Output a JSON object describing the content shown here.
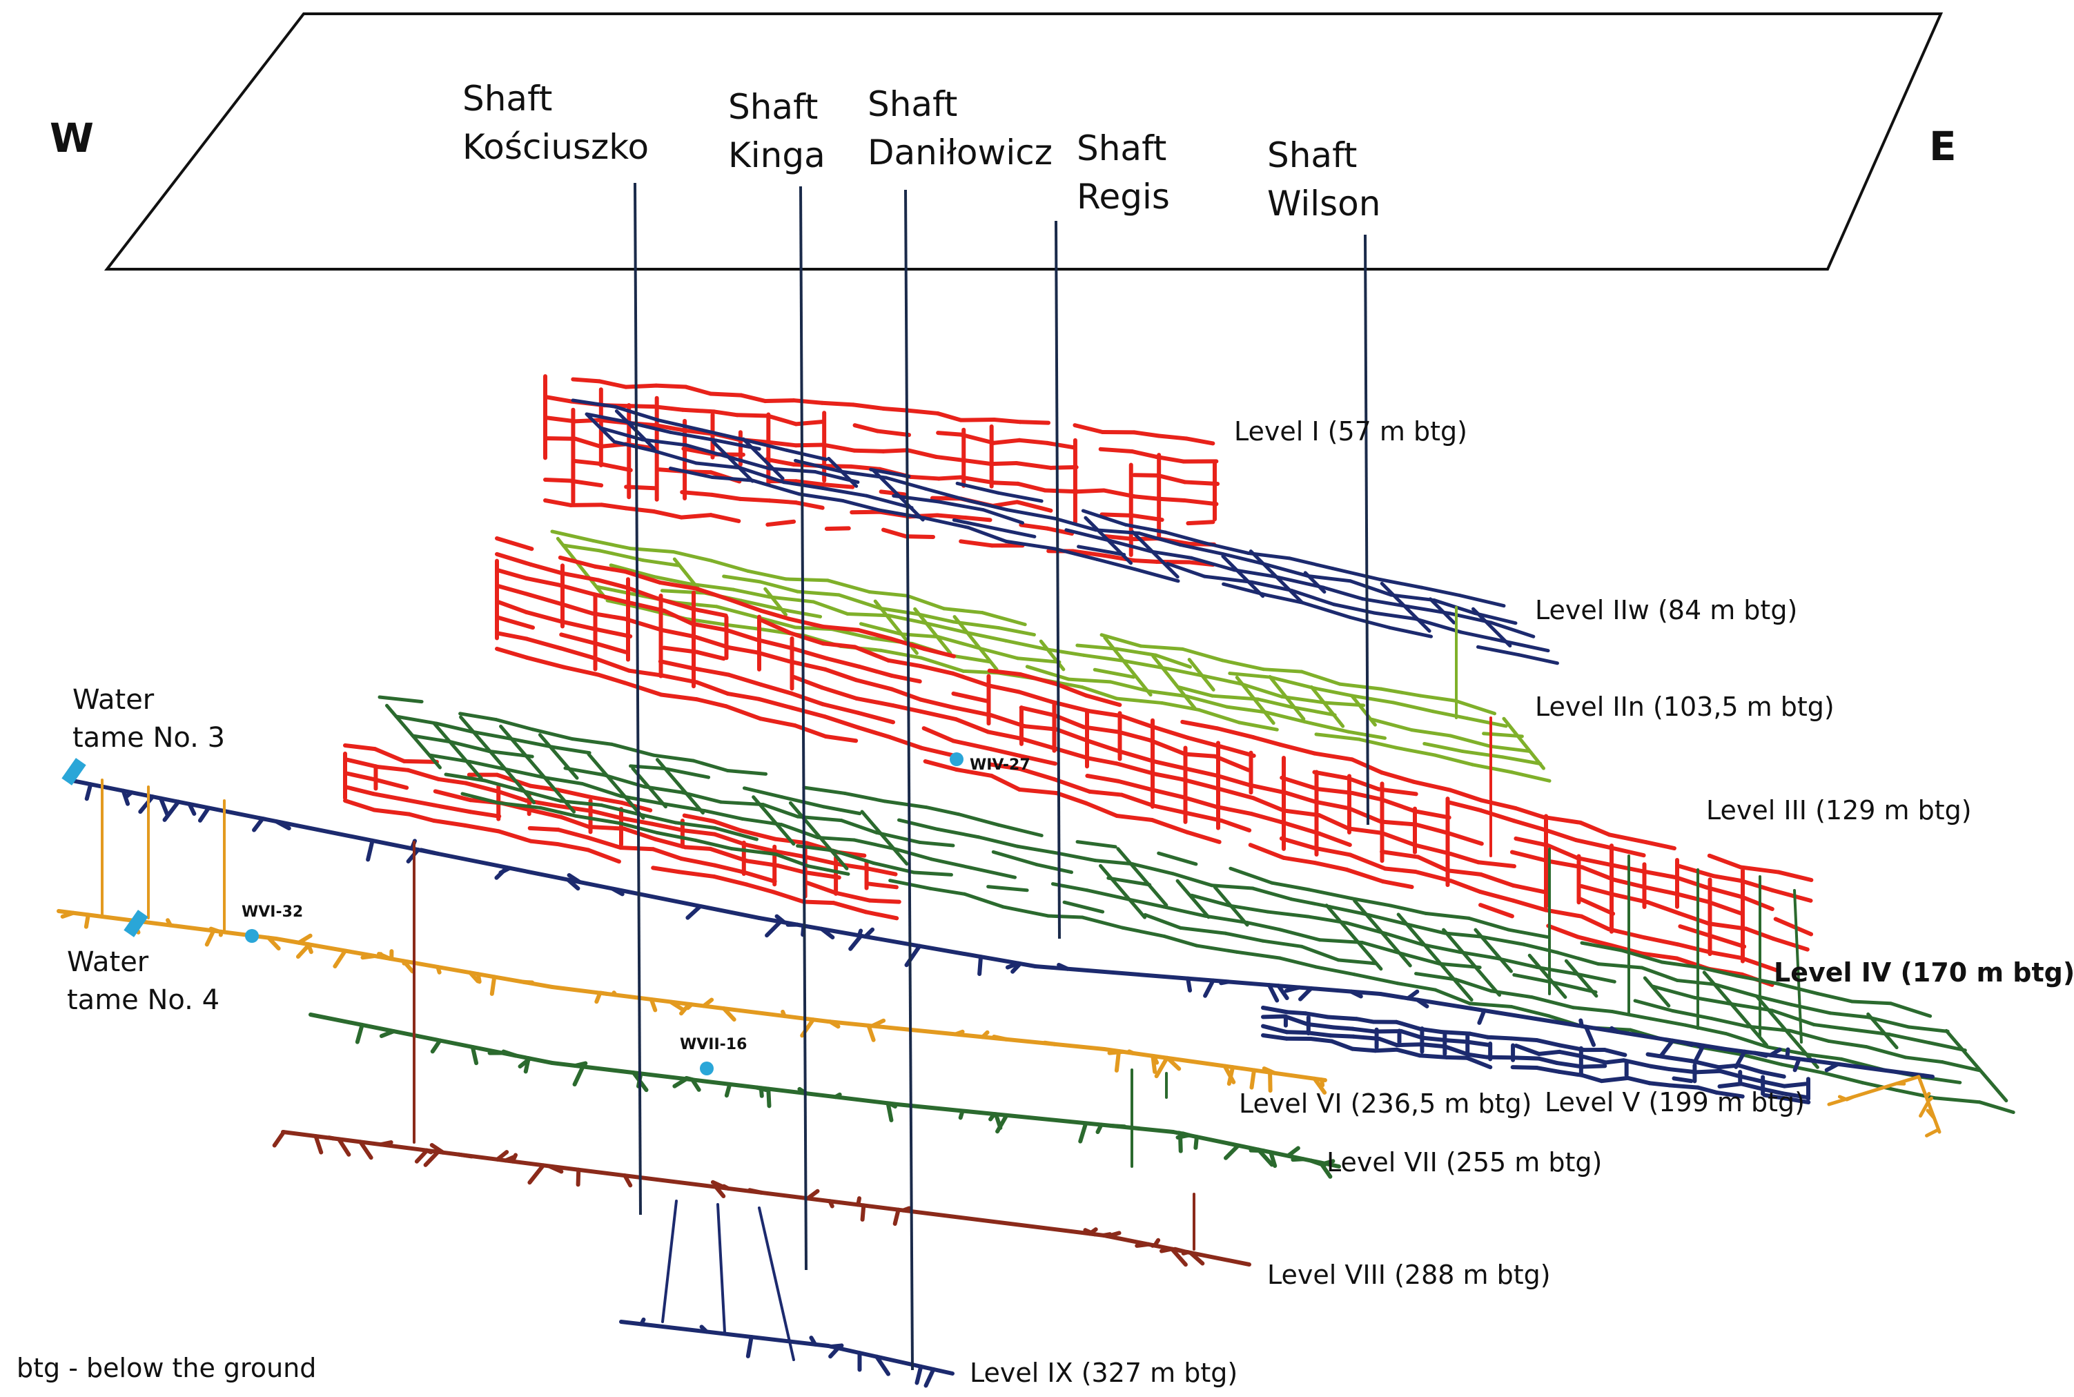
{
  "directions": {
    "west": "W",
    "east": "E"
  },
  "shafts": [
    {
      "line1": "Shaft",
      "line2": "Kościuszko"
    },
    {
      "line1": "Shaft",
      "line2": "Kinga"
    },
    {
      "line1": "Shaft",
      "line2": "Daniłowicz"
    },
    {
      "line1": "Shaft",
      "line2": "Regis"
    },
    {
      "line1": "Shaft",
      "line2": "Wilson"
    }
  ],
  "levels": [
    {
      "label": "Level I (57 m btg)",
      "color": "#e8221a"
    },
    {
      "label": "Level IIw (84 m btg)",
      "color": "#1c2a6e"
    },
    {
      "label": "Level IIn (103,5 m btg)",
      "color": "#7fb02a"
    },
    {
      "label": "Level III (129 m btg)",
      "color": "#e8221a"
    },
    {
      "label": "Level IV (170 m btg)",
      "color": "#2b6a2e",
      "highlight": "#e8221a"
    },
    {
      "label": "Level V (199 m btg)",
      "color": "#1c2a6e"
    },
    {
      "label": "Level VI (236,5 m btg)",
      "color": "#e39a1f"
    },
    {
      "label": "Level VII (255 m btg)",
      "color": "#2b6a2e"
    },
    {
      "label": "Level VIII (288 m btg)",
      "color": "#8b2a1a"
    },
    {
      "label": "Level IX (327 m btg)",
      "color": "#1c2a6e"
    }
  ],
  "water_tames": [
    {
      "line1": "Water",
      "line2": "tame No. 3"
    },
    {
      "line1": "Water",
      "line2": "tame No. 4"
    }
  ],
  "monitoring_points": [
    "WIV-27",
    "WVI-32",
    "WVII-16"
  ],
  "legend_note": "btg - below the ground",
  "colors": {
    "red": "#e8221a",
    "navy": "#1c2a6e",
    "lightgreen": "#7fb02a",
    "darkgreen": "#2b6a2e",
    "orange": "#e39a1f",
    "brown": "#8b2a1a",
    "cyan": "#2aa6d8"
  }
}
